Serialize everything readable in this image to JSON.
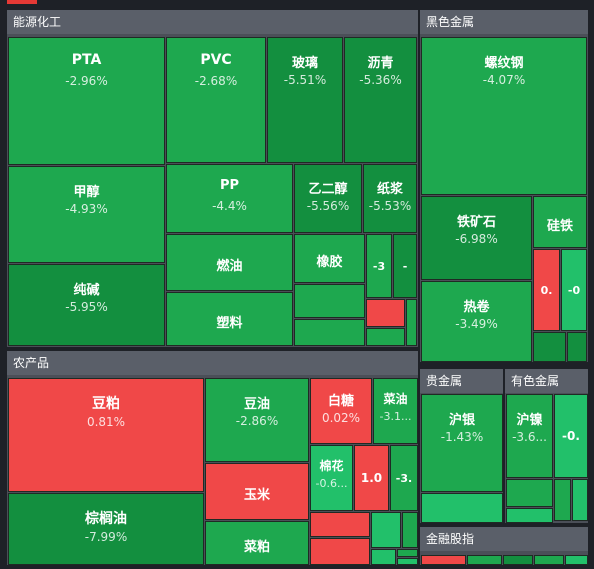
{
  "palette": {
    "up": "#f04848",
    "down": "#1ea84f",
    "down_deep": "#138f3f",
    "down_light": "#22c06a",
    "header": "#5a5f69",
    "border": "#1f2a24"
  },
  "groups": [
    {
      "name": "能源化工"
    },
    {
      "name": "黑色金属"
    },
    {
      "name": "农产品"
    },
    {
      "name": "贵金属"
    },
    {
      "name": "有色金属"
    },
    {
      "name": "金融股指"
    }
  ],
  "chart_data": {
    "type": "treemap",
    "title": "",
    "groups": [
      {
        "name": "能源化工",
        "items": [
          {
            "name": "PTA",
            "change": "-2.96%"
          },
          {
            "name": "PVC",
            "change": "-2.68%"
          },
          {
            "name": "玻璃",
            "change": "-5.51%"
          },
          {
            "name": "沥青",
            "change": "-5.36%"
          },
          {
            "name": "甲醇",
            "change": "-4.93%"
          },
          {
            "name": "PP",
            "change": "-4.4%"
          },
          {
            "name": "乙二醇",
            "change": "-5.56%"
          },
          {
            "name": "纸浆",
            "change": "-5.53%"
          },
          {
            "name": "纯碱",
            "change": "-5.95%"
          },
          {
            "name": "燃油",
            "change": ""
          },
          {
            "name": "橡胶",
            "change": ""
          },
          {
            "name": "塑料",
            "change": ""
          },
          {
            "name": "-3",
            "change": ""
          },
          {
            "name": "-",
            "change": ""
          }
        ]
      },
      {
        "name": "黑色金属",
        "items": [
          {
            "name": "螺纹钢",
            "change": "-4.07%"
          },
          {
            "name": "铁矿石",
            "change": "-6.98%"
          },
          {
            "name": "硅铁",
            "change": ""
          },
          {
            "name": "0.",
            "change": ""
          },
          {
            "name": "-0",
            "change": ""
          },
          {
            "name": "热卷",
            "change": "-3.49%"
          }
        ]
      },
      {
        "name": "农产品",
        "items": [
          {
            "name": "豆粕",
            "change": "0.81%"
          },
          {
            "name": "豆油",
            "change": "-2.86%"
          },
          {
            "name": "白糖",
            "change": "0.02%"
          },
          {
            "name": "菜油",
            "change": "-3.1..."
          },
          {
            "name": "玉米",
            "change": ""
          },
          {
            "name": "棉花",
            "change": "-0.6..."
          },
          {
            "name": "1.0",
            "change": ""
          },
          {
            "name": "-3.",
            "change": ""
          },
          {
            "name": "棕榈油",
            "change": "-7.99%"
          },
          {
            "name": "菜粕",
            "change": ""
          }
        ]
      },
      {
        "name": "贵金属",
        "items": [
          {
            "name": "沪银",
            "change": "-1.43%"
          }
        ]
      },
      {
        "name": "有色金属",
        "items": [
          {
            "name": "沪镍",
            "change": "-3.6..."
          },
          {
            "name": "-0.",
            "change": ""
          }
        ]
      },
      {
        "name": "金融股指",
        "items": []
      }
    ]
  }
}
